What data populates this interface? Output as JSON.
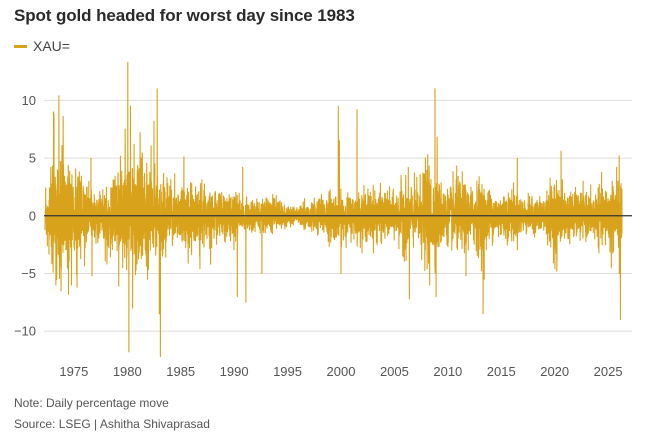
{
  "title": "Spot gold headed for worst day since 1983",
  "legend": {
    "label": "XAU="
  },
  "note": "Note: Daily percentage move",
  "source": "Source: LSEG | Ashitha Shivaprasad",
  "colors": {
    "series": "#d9a21b",
    "grid": "#dddddd",
    "zero_line": "#333333",
    "text": "#555555"
  },
  "chart_data": {
    "type": "line",
    "title": "Spot gold headed for worst day since 1983",
    "xlabel": "",
    "ylabel": "",
    "series_name": "XAU=",
    "xlim": [
      1972.3,
      2026.3
    ],
    "ylim": [
      -12.5,
      13.5
    ],
    "x_ticks": [
      1975,
      1980,
      1985,
      1990,
      1995,
      2000,
      2005,
      2010,
      2015,
      2020,
      2025
    ],
    "y_ticks": [
      10,
      5,
      0,
      -5,
      -10
    ],
    "y_tick_labels": [
      "10",
      "5",
      "0",
      "−5",
      "−10"
    ],
    "grid": "horizontal",
    "volatility_profile": [
      [
        1972.3,
        1.2
      ],
      [
        1973.0,
        4.8
      ],
      [
        1974.0,
        5.5
      ],
      [
        1975.0,
        3.6
      ],
      [
        1976.0,
        2.8
      ],
      [
        1977.0,
        1.6
      ],
      [
        1978.0,
        2.2
      ],
      [
        1979.0,
        3.4
      ],
      [
        1980.0,
        5.0
      ],
      [
        1981.0,
        3.8
      ],
      [
        1982.0,
        4.0
      ],
      [
        1983.0,
        3.6
      ],
      [
        1984.0,
        2.2
      ],
      [
        1985.0,
        2.2
      ],
      [
        1986.0,
        2.5
      ],
      [
        1987.0,
        2.3
      ],
      [
        1988.0,
        1.8
      ],
      [
        1989.0,
        1.6
      ],
      [
        1990.0,
        1.9
      ],
      [
        1991.0,
        1.4
      ],
      [
        1992.0,
        1.2
      ],
      [
        1993.0,
        1.6
      ],
      [
        1994.0,
        1.1
      ],
      [
        1995.0,
        0.8
      ],
      [
        1996.0,
        0.7
      ],
      [
        1997.0,
        1.2
      ],
      [
        1998.0,
        1.4
      ],
      [
        1999.0,
        1.9
      ],
      [
        2000.0,
        1.6
      ],
      [
        2001.0,
        1.6
      ],
      [
        2002.0,
        1.8
      ],
      [
        2003.0,
        2.0
      ],
      [
        2004.0,
        1.8
      ],
      [
        2005.0,
        1.6
      ],
      [
        2006.0,
        2.8
      ],
      [
        2007.0,
        2.2
      ],
      [
        2008.0,
        3.8
      ],
      [
        2009.0,
        2.8
      ],
      [
        2010.0,
        1.9
      ],
      [
        2011.0,
        3.0
      ],
      [
        2012.0,
        2.0
      ],
      [
        2013.0,
        2.8
      ],
      [
        2014.0,
        1.8
      ],
      [
        2015.0,
        1.7
      ],
      [
        2016.0,
        1.9
      ],
      [
        2017.0,
        1.4
      ],
      [
        2018.0,
        1.2
      ],
      [
        2019.0,
        1.5
      ],
      [
        2020.0,
        2.8
      ],
      [
        2021.0,
        1.8
      ],
      [
        2022.0,
        1.8
      ],
      [
        2023.0,
        1.6
      ],
      [
        2024.0,
        1.9
      ],
      [
        2025.0,
        2.4
      ],
      [
        2026.3,
        3.0
      ]
    ],
    "notable_moves": [
      {
        "x": 1973.1,
        "y": 9.0
      },
      {
        "x": 1973.6,
        "y": 10.4
      },
      {
        "x": 1974.0,
        "y": 8.6
      },
      {
        "x": 1973.4,
        "y": -5.3
      },
      {
        "x": 1973.8,
        "y": -6.5
      },
      {
        "x": 1974.5,
        "y": -6.8
      },
      {
        "x": 1975.3,
        "y": -6.2
      },
      {
        "x": 1976.6,
        "y": 5.0
      },
      {
        "x": 1976.7,
        "y": -5.2
      },
      {
        "x": 1979.2,
        "y": -6.1
      },
      {
        "x": 1979.8,
        "y": 7.5
      },
      {
        "x": 1980.05,
        "y": 13.3
      },
      {
        "x": 1980.15,
        "y": -11.8
      },
      {
        "x": 1980.3,
        "y": 9.5
      },
      {
        "x": 1980.5,
        "y": -8.0
      },
      {
        "x": 1981.2,
        "y": 7.2
      },
      {
        "x": 1981.9,
        "y": -5.5
      },
      {
        "x": 1982.5,
        "y": 8.2
      },
      {
        "x": 1982.8,
        "y": 11.0
      },
      {
        "x": 1983.1,
        "y": -12.2
      },
      {
        "x": 1983.0,
        "y": -8.5
      },
      {
        "x": 1985.3,
        "y": 5.1
      },
      {
        "x": 1986.8,
        "y": -4.6
      },
      {
        "x": 1987.8,
        "y": -4.2
      },
      {
        "x": 1990.3,
        "y": -7.0
      },
      {
        "x": 1990.8,
        "y": 4.2
      },
      {
        "x": 1991.1,
        "y": -7.5
      },
      {
        "x": 1992.6,
        "y": -5.0
      },
      {
        "x": 1999.75,
        "y": 9.5
      },
      {
        "x": 1999.85,
        "y": 6.5
      },
      {
        "x": 2000.0,
        "y": -5.0
      },
      {
        "x": 2001.5,
        "y": 9.2
      },
      {
        "x": 2006.4,
        "y": -7.2
      },
      {
        "x": 2008.3,
        "y": -6.0
      },
      {
        "x": 2008.8,
        "y": 11.0
      },
      {
        "x": 2008.9,
        "y": -7.0
      },
      {
        "x": 2009.0,
        "y": 6.8
      },
      {
        "x": 2011.7,
        "y": -5.2
      },
      {
        "x": 2013.3,
        "y": -8.5
      },
      {
        "x": 2013.4,
        "y": -5.5
      },
      {
        "x": 2016.5,
        "y": 5.0
      },
      {
        "x": 2020.2,
        "y": -4.8
      },
      {
        "x": 2020.6,
        "y": 5.6
      },
      {
        "x": 2025.3,
        "y": -4.5
      },
      {
        "x": 2025.8,
        "y": 4.2
      },
      {
        "x": 2026.05,
        "y": -5.0
      },
      {
        "x": 2026.15,
        "y": -9.0
      }
    ]
  }
}
